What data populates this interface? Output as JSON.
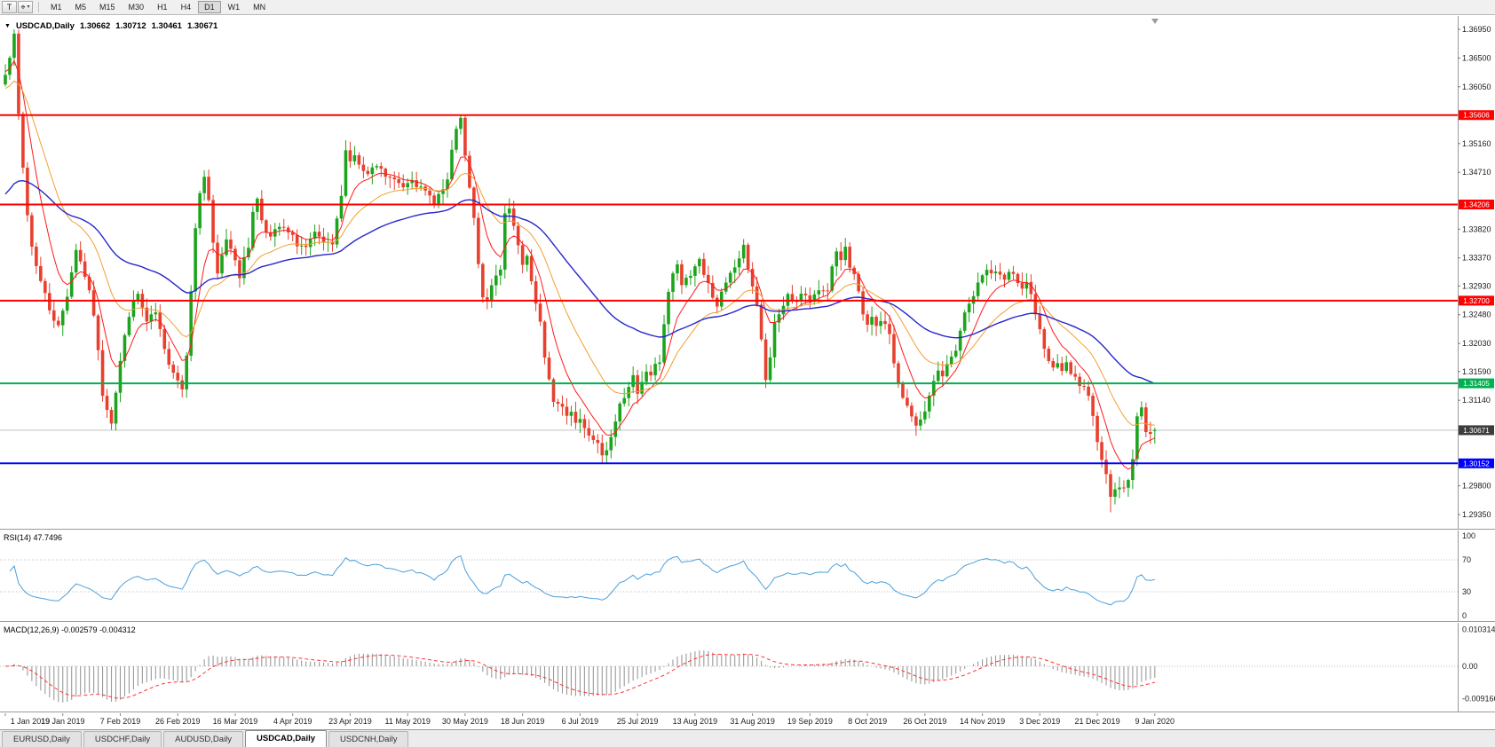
{
  "toolbar": {
    "t_button": "T",
    "cursor_tool": "⌖",
    "timeframes": [
      "M1",
      "M5",
      "M15",
      "M30",
      "H1",
      "H4",
      "D1",
      "W1",
      "MN"
    ],
    "active_timeframe": "D1"
  },
  "chart": {
    "title": {
      "symbol": "USDCAD,Daily",
      "open": "1.30662",
      "high": "1.30712",
      "low": "1.30461",
      "close": "1.30671"
    }
  },
  "chart_data": {
    "type": "candlestick",
    "symbol": "USDCAD",
    "timeframe": "Daily",
    "ohlc": {
      "open": 1.30662,
      "high": 1.30712,
      "low": 1.30461,
      "close": 1.30671
    },
    "candle_count": 261,
    "noise": 0.0013,
    "colors": {
      "up": "#1ca51c",
      "down": "#e8402e"
    },
    "x_labels": [
      "1 Jan 2019",
      "19 Jan 2019",
      "7 Feb 2019",
      "26 Feb 2019",
      "16 Mar 2019",
      "4 Apr 2019",
      "23 Apr 2019",
      "11 May 2019",
      "30 May 2019",
      "18 Jun 2019",
      "6 Jul 2019",
      "25 Jul 2019",
      "13 Aug 2019",
      "31 Aug 2019",
      "19 Sep 2019",
      "8 Oct 2019",
      "26 Oct 2019",
      "14 Nov 2019",
      "3 Dec 2019",
      "21 Dec 2019",
      "9 Jan 2020"
    ],
    "x_label_step": 13,
    "y_axis": {
      "labels": [
        "1.36950",
        "1.36500",
        "1.36050",
        "1.35600",
        "1.35160",
        "1.34710",
        "1.34260",
        "1.33820",
        "1.33370",
        "1.32930",
        "1.32480",
        "1.32030",
        "1.31590",
        "1.31140",
        "1.30700",
        "1.30250",
        "1.29800",
        "1.29350"
      ]
    },
    "horizontal_lines": [
      {
        "name": "resistance-line-upper",
        "price": 1.35606,
        "label": "1.35606",
        "color": "#ff0000",
        "line_width": 2
      },
      {
        "name": "resistance-line-mid",
        "price": 1.34206,
        "label": "1.34206",
        "color": "#ff0000",
        "line_width": 2
      },
      {
        "name": "resistance-line-lower",
        "price": 1.327,
        "label": "1.32700",
        "color": "#ff0000",
        "line_width": 2
      },
      {
        "name": "support-line-green",
        "price": 1.31405,
        "label": "1.31405",
        "color": "#00b050",
        "line_width": 2
      },
      {
        "name": "support-line-blue",
        "price": 1.30152,
        "label": "1.30152",
        "color": "#0000ff",
        "line_width": 2
      }
    ],
    "current_price": {
      "value": 1.30671,
      "label": "1.30671",
      "badge_color": "#3c3c3c",
      "line_color": "#c0c0c0"
    },
    "moving_averages": [
      {
        "name": "ma-fast-line",
        "period": 8,
        "color": "#ff1a1a",
        "width": 1,
        "seed": 1.363
      },
      {
        "name": "ma-mid-line",
        "period": 21,
        "color": "#f0a030",
        "width": 1,
        "seed": 1.36
      },
      {
        "name": "ma-slow-line",
        "period": 55,
        "color": "#2626cc",
        "width": 1.4,
        "seed": 1.343
      }
    ],
    "close_anchors": [
      [
        0,
        1.363
      ],
      [
        2,
        1.3682
      ],
      [
        3,
        1.356
      ],
      [
        4,
        1.3478
      ],
      [
        5,
        1.3405
      ],
      [
        6,
        1.3355
      ],
      [
        8,
        1.33
      ],
      [
        10,
        1.3258
      ],
      [
        12,
        1.3228
      ],
      [
        14,
        1.328
      ],
      [
        16,
        1.3352
      ],
      [
        18,
        1.331
      ],
      [
        20,
        1.325
      ],
      [
        22,
        1.3125
      ],
      [
        24,
        1.3082
      ],
      [
        26,
        1.3175
      ],
      [
        28,
        1.325
      ],
      [
        30,
        1.328
      ],
      [
        32,
        1.3235
      ],
      [
        34,
        1.325
      ],
      [
        36,
        1.319
      ],
      [
        39,
        1.3147
      ],
      [
        40,
        1.3132
      ],
      [
        41,
        1.319
      ],
      [
        42,
        1.329
      ],
      [
        43,
        1.338
      ],
      [
        44,
        1.344
      ],
      [
        45,
        1.3465
      ],
      [
        46,
        1.3428
      ],
      [
        47,
        1.3355
      ],
      [
        48,
        1.331
      ],
      [
        50,
        1.3368
      ],
      [
        52,
        1.3338
      ],
      [
        53,
        1.331
      ],
      [
        55,
        1.3355
      ],
      [
        56,
        1.3413
      ],
      [
        57,
        1.3428
      ],
      [
        58,
        1.3398
      ],
      [
        60,
        1.3368
      ],
      [
        62,
        1.3385
      ],
      [
        64,
        1.3375
      ],
      [
        66,
        1.336
      ],
      [
        68,
        1.3352
      ],
      [
        70,
        1.3372
      ],
      [
        72,
        1.336
      ],
      [
        74,
        1.3352
      ],
      [
        75,
        1.3398
      ],
      [
        76,
        1.343
      ],
      [
        77,
        1.3512
      ],
      [
        78,
        1.3488
      ],
      [
        79,
        1.35
      ],
      [
        80,
        1.348
      ],
      [
        82,
        1.3465
      ],
      [
        84,
        1.348
      ],
      [
        86,
        1.3465
      ],
      [
        88,
        1.3457
      ],
      [
        90,
        1.345
      ],
      [
        92,
        1.3465
      ],
      [
        94,
        1.3443
      ],
      [
        97,
        1.3428
      ],
      [
        99,
        1.3443
      ],
      [
        100,
        1.3457
      ],
      [
        101,
        1.35
      ],
      [
        102,
        1.3542
      ],
      [
        103,
        1.355
      ],
      [
        104,
        1.3495
      ],
      [
        105,
        1.3443
      ],
      [
        106,
        1.3398
      ],
      [
        107,
        1.3323
      ],
      [
        108,
        1.328
      ],
      [
        109,
        1.3265
      ],
      [
        110,
        1.3294
      ],
      [
        112,
        1.3323
      ],
      [
        113,
        1.3408
      ],
      [
        114,
        1.3418
      ],
      [
        115,
        1.3383
      ],
      [
        116,
        1.3352
      ],
      [
        117,
        1.3323
      ],
      [
        118,
        1.3338
      ],
      [
        119,
        1.3294
      ],
      [
        120,
        1.3264
      ],
      [
        121,
        1.3234
      ],
      [
        122,
        1.3175
      ],
      [
        123,
        1.3147
      ],
      [
        124,
        1.3115
      ],
      [
        126,
        1.31
      ],
      [
        127,
        1.3085
      ],
      [
        128,
        1.31
      ],
      [
        129,
        1.3078
      ],
      [
        130,
        1.3085
      ],
      [
        131,
        1.307
      ],
      [
        132,
        1.3063
      ],
      [
        133,
        1.3055
      ],
      [
        134,
        1.3048
      ],
      [
        135,
        1.3028
      ],
      [
        136,
        1.304
      ],
      [
        137,
        1.3063
      ],
      [
        138,
        1.3085
      ],
      [
        139,
        1.3115
      ],
      [
        141,
        1.313
      ],
      [
        142,
        1.3147
      ],
      [
        143,
        1.313
      ],
      [
        144,
        1.3147
      ],
      [
        145,
        1.316
      ],
      [
        146,
        1.3153
      ],
      [
        147,
        1.3168
      ],
      [
        148,
        1.3175
      ],
      [
        149,
        1.3235
      ],
      [
        150,
        1.328
      ],
      [
        151,
        1.331
      ],
      [
        152,
        1.3323
      ],
      [
        153,
        1.3294
      ],
      [
        155,
        1.331
      ],
      [
        156,
        1.3323
      ],
      [
        157,
        1.3338
      ],
      [
        158,
        1.331
      ],
      [
        159,
        1.3294
      ],
      [
        160,
        1.328
      ],
      [
        161,
        1.3264
      ],
      [
        162,
        1.328
      ],
      [
        163,
        1.3294
      ],
      [
        164,
        1.331
      ],
      [
        165,
        1.3323
      ],
      [
        166,
        1.3338
      ],
      [
        167,
        1.3352
      ],
      [
        168,
        1.3323
      ],
      [
        169,
        1.3294
      ],
      [
        170,
        1.3264
      ],
      [
        171,
        1.3205
      ],
      [
        172,
        1.3147
      ],
      [
        173,
        1.3175
      ],
      [
        174,
        1.3235
      ],
      [
        176,
        1.3264
      ],
      [
        177,
        1.328
      ],
      [
        178,
        1.3272
      ],
      [
        179,
        1.3264
      ],
      [
        180,
        1.328
      ],
      [
        182,
        1.3264
      ],
      [
        183,
        1.328
      ],
      [
        184,
        1.3287
      ],
      [
        186,
        1.328
      ],
      [
        187,
        1.3323
      ],
      [
        188,
        1.3345
      ],
      [
        189,
        1.3338
      ],
      [
        190,
        1.3352
      ],
      [
        191,
        1.3323
      ],
      [
        192,
        1.331
      ],
      [
        193,
        1.328
      ],
      [
        194,
        1.325
      ],
      [
        195,
        1.3235
      ],
      [
        196,
        1.325
      ],
      [
        197,
        1.3228
      ],
      [
        198,
        1.3235
      ],
      [
        200,
        1.322
      ],
      [
        201,
        1.3175
      ],
      [
        202,
        1.3147
      ],
      [
        203,
        1.3115
      ],
      [
        204,
        1.31
      ],
      [
        205,
        1.3085
      ],
      [
        206,
        1.307
      ],
      [
        207,
        1.3078
      ],
      [
        208,
        1.31
      ],
      [
        209,
        1.3115
      ],
      [
        210,
        1.3147
      ],
      [
        211,
        1.316
      ],
      [
        212,
        1.3153
      ],
      [
        213,
        1.3168
      ],
      [
        215,
        1.319
      ],
      [
        216,
        1.322
      ],
      [
        217,
        1.325
      ],
      [
        218,
        1.3264
      ],
      [
        219,
        1.328
      ],
      [
        220,
        1.3294
      ],
      [
        221,
        1.331
      ],
      [
        222,
        1.3323
      ],
      [
        223,
        1.331
      ],
      [
        224,
        1.3316
      ],
      [
        225,
        1.331
      ],
      [
        226,
        1.3302
      ],
      [
        227,
        1.331
      ],
      [
        229,
        1.3302
      ],
      [
        230,
        1.3294
      ],
      [
        231,
        1.3302
      ],
      [
        232,
        1.328
      ],
      [
        233,
        1.325
      ],
      [
        234,
        1.322
      ],
      [
        235,
        1.319
      ],
      [
        236,
        1.3175
      ],
      [
        237,
        1.316
      ],
      [
        238,
        1.3175
      ],
      [
        239,
        1.316
      ],
      [
        240,
        1.3168
      ],
      [
        241,
        1.3153
      ],
      [
        242,
        1.3147
      ],
      [
        244,
        1.313
      ],
      [
        245,
        1.3115
      ],
      [
        246,
        1.3085
      ],
      [
        247,
        1.3055
      ],
      [
        248,
        1.3025
      ],
      [
        249,
        1.2995
      ],
      [
        250,
        1.2968
      ],
      [
        251,
        1.298
      ],
      [
        252,
        1.2972
      ],
      [
        253,
        1.298
      ],
      [
        254,
        1.2988
      ],
      [
        255,
        1.3025
      ],
      [
        256,
        1.3085
      ],
      [
        257,
        1.31
      ],
      [
        258,
        1.307
      ],
      [
        259,
        1.3062
      ],
      [
        260,
        1.30671
      ]
    ],
    "wick_overrides": {
      "2": {
        "high": 1.3695
      },
      "103": {
        "high": 1.35615
      },
      "135": {
        "low": 1.3016
      },
      "250": {
        "low": 1.29385
      },
      "260": {
        "high": 1.30712,
        "low": 1.30461
      }
    },
    "rsi": {
      "label": "RSI(14) 47.7496",
      "period": 14,
      "last": 47.7496,
      "levels": [
        100,
        70,
        30,
        0
      ],
      "color": "#4aa0dc"
    },
    "macd": {
      "label": "MACD(12,26,9) -0.002579 -0.004312",
      "fast": 12,
      "slow": 26,
      "signal": 9,
      "last_macd": -0.002579,
      "last_signal": -0.004312,
      "signal_color": "#ff3333",
      "axis_labels": [
        {
          "v": 0.010314,
          "label": "0.010314"
        },
        {
          "v": 0,
          "label": "0.00"
        },
        {
          "v": -0.009166,
          "label": "-0.009166"
        }
      ]
    }
  },
  "tabs": [
    {
      "label": "EURUSD,Daily",
      "active": false
    },
    {
      "label": "USDCHF,Daily",
      "active": false
    },
    {
      "label": "AUDUSD,Daily",
      "active": false
    },
    {
      "label": "USDCAD,Daily",
      "active": true
    },
    {
      "label": "USDCNH,Daily",
      "active": false
    }
  ]
}
